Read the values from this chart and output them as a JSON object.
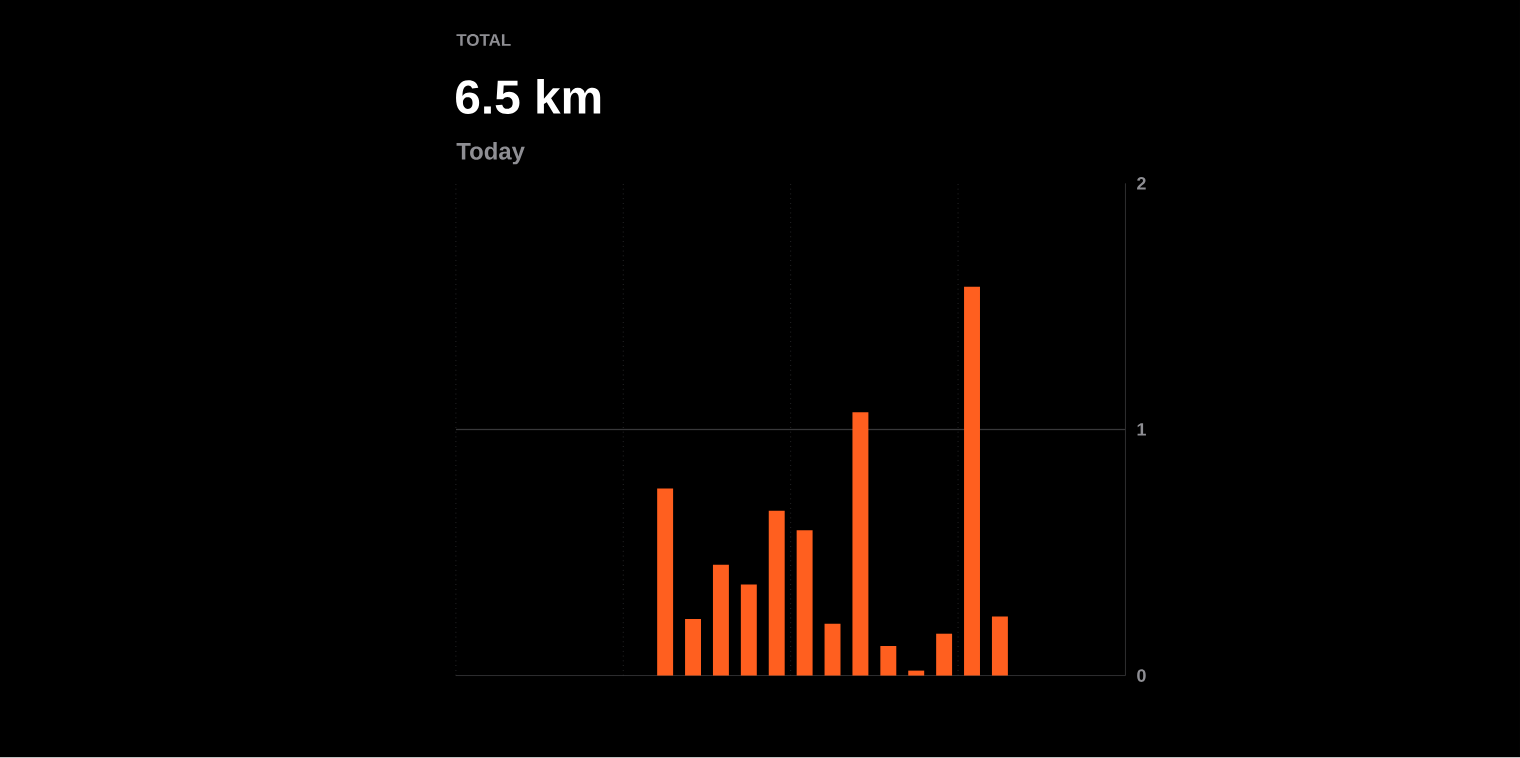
{
  "chart_data": {
    "type": "bar",
    "title": "TOTAL",
    "subtitle": "6.5 km",
    "annotations": [
      "Today"
    ],
    "categories": [
      null,
      null,
      null,
      null,
      null,
      null,
      null,
      null,
      null,
      null,
      null,
      null,
      null,
      null,
      null,
      null,
      null,
      null,
      null,
      null,
      null,
      null,
      null,
      null
    ],
    "values": [
      null,
      null,
      null,
      null,
      null,
      null,
      null,
      0.76,
      0.23,
      0.45,
      0.37,
      0.67,
      0.59,
      0.21,
      1.07,
      0.12,
      0.02,
      0.17,
      1.58,
      0.24,
      null,
      null,
      null,
      null
    ],
    "color": "#ff5f1f",
    "ylim": [
      0,
      2
    ],
    "yticks": [
      0,
      1,
      2
    ],
    "ref_lines": [
      {
        "axis": "y",
        "value": 1,
        "color": "#38383a"
      }
    ],
    "tick_labels": "y"
  }
}
